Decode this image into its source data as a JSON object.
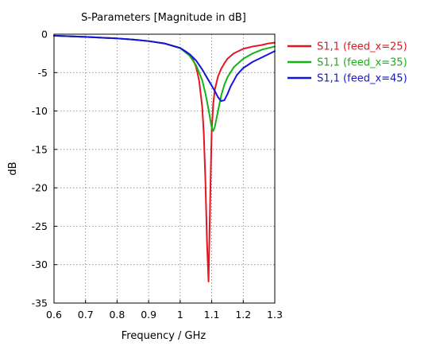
{
  "chart_data": {
    "type": "line",
    "title": "S-Parameters [Magnitude in dB]",
    "xlabel": "Frequency / GHz",
    "ylabel": "dB",
    "xlim": [
      0.6,
      1.3
    ],
    "ylim": [
      -35,
      0
    ],
    "xticks": [
      "0.6",
      "0.7",
      "0.8",
      "0.9",
      "1",
      "1.1",
      "1.2",
      "1.3"
    ],
    "yticks": [
      "0",
      "-5",
      "-10",
      "-15",
      "-20",
      "-25",
      "-30",
      "-35"
    ],
    "grid": true,
    "legend_position": "right",
    "series": [
      {
        "name": "S1,1 (feed_x=25)",
        "color": "#e8141e",
        "points": [
          [
            0.6,
            -0.2
          ],
          [
            0.7,
            -0.35
          ],
          [
            0.8,
            -0.55
          ],
          [
            0.85,
            -0.7
          ],
          [
            0.9,
            -0.9
          ],
          [
            0.95,
            -1.2
          ],
          [
            1.0,
            -1.8
          ],
          [
            1.02,
            -2.3
          ],
          [
            1.04,
            -3.2
          ],
          [
            1.05,
            -4.2
          ],
          [
            1.06,
            -6.0
          ],
          [
            1.07,
            -9.5
          ],
          [
            1.075,
            -13
          ],
          [
            1.08,
            -19
          ],
          [
            1.085,
            -27
          ],
          [
            1.09,
            -32.2
          ],
          [
            1.093,
            -26
          ],
          [
            1.097,
            -18
          ],
          [
            1.1,
            -12.5
          ],
          [
            1.105,
            -9
          ],
          [
            1.11,
            -7.2
          ],
          [
            1.12,
            -5.5
          ],
          [
            1.13,
            -4.5
          ],
          [
            1.14,
            -3.8
          ],
          [
            1.15,
            -3.2
          ],
          [
            1.17,
            -2.5
          ],
          [
            1.2,
            -1.9
          ],
          [
            1.23,
            -1.6
          ],
          [
            1.26,
            -1.4
          ],
          [
            1.28,
            -1.2
          ],
          [
            1.3,
            -1.1
          ]
        ]
      },
      {
        "name": "S1,1 (feed_x=35)",
        "color": "#14b414",
        "points": [
          [
            0.6,
            -0.2
          ],
          [
            0.7,
            -0.35
          ],
          [
            0.8,
            -0.55
          ],
          [
            0.85,
            -0.7
          ],
          [
            0.9,
            -0.9
          ],
          [
            0.95,
            -1.2
          ],
          [
            1.0,
            -1.8
          ],
          [
            1.03,
            -2.8
          ],
          [
            1.05,
            -4.0
          ],
          [
            1.07,
            -6.0
          ],
          [
            1.08,
            -7.7
          ],
          [
            1.09,
            -9.8
          ],
          [
            1.1,
            -12.2
          ],
          [
            1.105,
            -12.6
          ],
          [
            1.11,
            -12.0
          ],
          [
            1.12,
            -10.0
          ],
          [
            1.13,
            -8.0
          ],
          [
            1.14,
            -6.6
          ],
          [
            1.15,
            -5.6
          ],
          [
            1.17,
            -4.3
          ],
          [
            1.2,
            -3.2
          ],
          [
            1.23,
            -2.5
          ],
          [
            1.26,
            -2.0
          ],
          [
            1.3,
            -1.6
          ]
        ]
      },
      {
        "name": "S1,1 (feed_x=45)",
        "color": "#1414dc",
        "points": [
          [
            0.6,
            -0.2
          ],
          [
            0.7,
            -0.35
          ],
          [
            0.8,
            -0.55
          ],
          [
            0.85,
            -0.7
          ],
          [
            0.9,
            -0.9
          ],
          [
            0.95,
            -1.2
          ],
          [
            1.0,
            -1.8
          ],
          [
            1.03,
            -2.6
          ],
          [
            1.05,
            -3.4
          ],
          [
            1.07,
            -4.6
          ],
          [
            1.09,
            -6.0
          ],
          [
            1.11,
            -7.4
          ],
          [
            1.12,
            -8.2
          ],
          [
            1.13,
            -8.7
          ],
          [
            1.14,
            -8.6
          ],
          [
            1.15,
            -7.8
          ],
          [
            1.16,
            -6.8
          ],
          [
            1.18,
            -5.3
          ],
          [
            1.2,
            -4.4
          ],
          [
            1.23,
            -3.6
          ],
          [
            1.26,
            -3.0
          ],
          [
            1.3,
            -2.2
          ]
        ]
      }
    ]
  }
}
